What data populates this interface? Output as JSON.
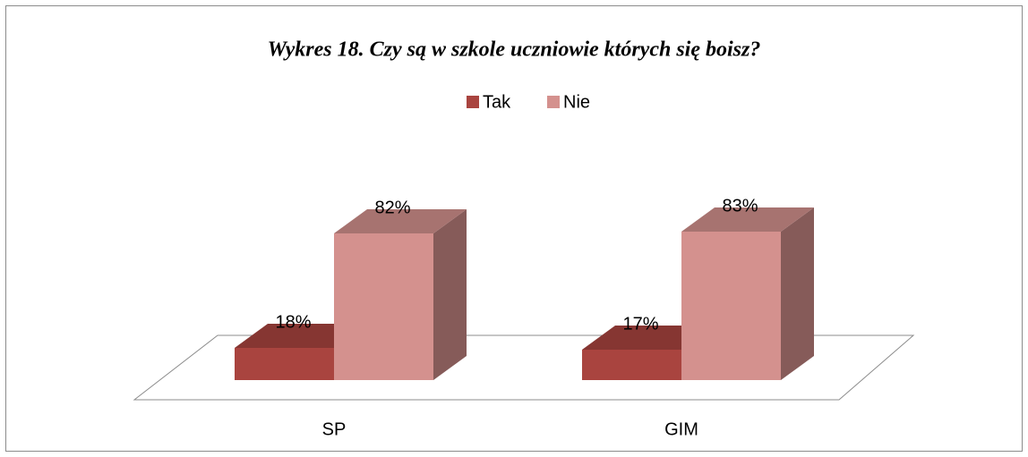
{
  "chart_data": {
    "type": "bar3d",
    "title": "Wykres 18. Czy są w szkole uczniowie których się boisz?",
    "categories": [
      "SP",
      "GIM"
    ],
    "series": [
      {
        "name": "Tak",
        "color": "#a9443f",
        "values": [
          18,
          17
        ],
        "value_labels": [
          "18%",
          "17%"
        ]
      },
      {
        "name": "Nie",
        "color": "#d4918e",
        "values": [
          82,
          83
        ],
        "value_labels": [
          "82%",
          "83%"
        ]
      }
    ],
    "legend": "top"
  }
}
